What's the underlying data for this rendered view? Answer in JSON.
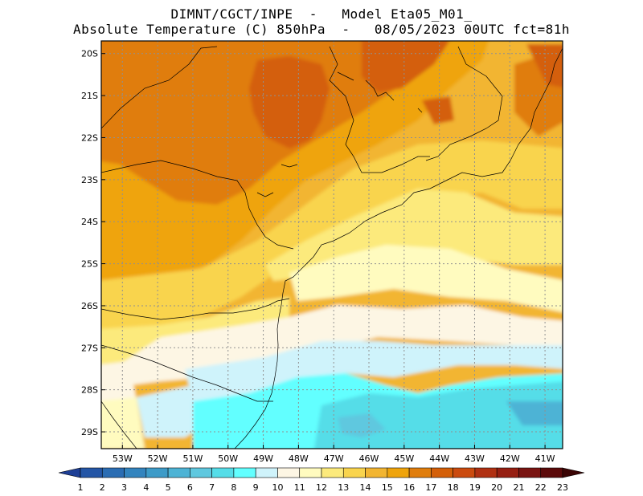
{
  "header": {
    "line1": "DIMNT/CGCT/INPE  -   Model Eta05_M01_",
    "line2": "Absolute Temperature (C) 850hPa  -   08/05/2023 00UTC fct=81h"
  },
  "axes": {
    "lat_labels": [
      "20S",
      "21S",
      "22S",
      "23S",
      "24S",
      "25S",
      "26S",
      "27S",
      "28S",
      "29S"
    ],
    "lon_labels": [
      "53W",
      "52W",
      "51W",
      "50W",
      "49W",
      "48W",
      "47W",
      "46W",
      "45W",
      "44W",
      "43W",
      "42W",
      "41W"
    ],
    "lat_range": [
      -29.4,
      -19.7
    ],
    "lon_range": [
      -53.6,
      -40.5
    ]
  },
  "colorbar": {
    "labels": [
      "1",
      "2",
      "3",
      "4",
      "5",
      "6",
      "7",
      "8",
      "9",
      "10",
      "11",
      "12",
      "13",
      "14",
      "15",
      "16",
      "17",
      "18",
      "19",
      "20",
      "21",
      "22",
      "23"
    ],
    "colors": [
      "#1e3f96",
      "#2456a6",
      "#2b6db3",
      "#3384be",
      "#3d9bc8",
      "#4db3d5",
      "#5fc8df",
      "#55dde8",
      "#62ffff",
      "#cff3fb",
      "#fdf6e4",
      "#fffbbf",
      "#fcea7c",
      "#f9d44d",
      "#f2b531",
      "#efa40c",
      "#e07d0c",
      "#d45f08",
      "#cb4b0f",
      "#b03012",
      "#961f12",
      "#7a1412",
      "#5c0a0a",
      "#3b0505"
    ]
  }
}
